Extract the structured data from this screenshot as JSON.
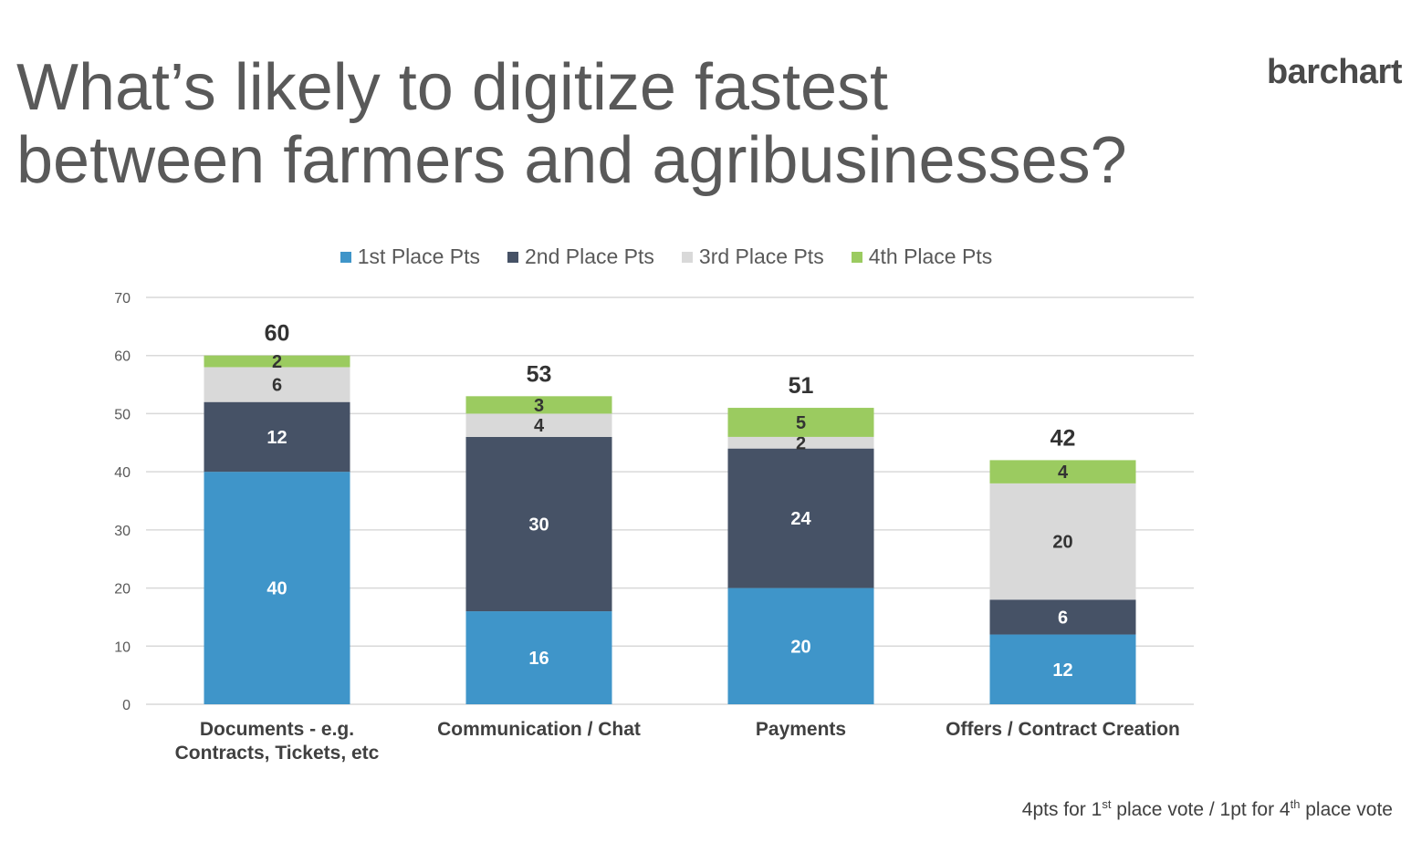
{
  "title_line1": "What’s likely to digitize fastest",
  "title_line2": "between farmers and agribusinesses?",
  "logo": "barchart",
  "footnote": {
    "part1": "4pts for 1",
    "sup1": "st",
    "part2": " place vote / 1pt for 4",
    "sup2": "th",
    "part3": " place vote"
  },
  "colors": {
    "first": "#3f95c9",
    "second": "#465266",
    "third": "#d9d9d9",
    "fourth": "#9bcb60",
    "grid": "#d9d9d9",
    "axis_text": "#595959"
  },
  "chart_data": {
    "type": "bar",
    "stacked": true,
    "categories": [
      [
        "Documents - e.g.",
        "Contracts, Tickets, etc"
      ],
      [
        "Communication / Chat"
      ],
      [
        "Payments"
      ],
      [
        "Offers / Contract Creation"
      ]
    ],
    "series": [
      {
        "name": "1st Place Pts",
        "values": [
          40,
          16,
          20,
          12
        ]
      },
      {
        "name": "2nd Place Pts",
        "values": [
          12,
          30,
          24,
          6
        ]
      },
      {
        "name": "3rd Place Pts",
        "values": [
          6,
          4,
          2,
          20
        ]
      },
      {
        "name": "4th Place Pts",
        "values": [
          2,
          3,
          5,
          4
        ]
      }
    ],
    "totals": [
      60,
      53,
      51,
      42
    ],
    "ylim": [
      0,
      70
    ],
    "yticks": [
      0,
      10,
      20,
      30,
      40,
      50,
      60,
      70
    ],
    "grid": true,
    "legend_position": "top"
  }
}
